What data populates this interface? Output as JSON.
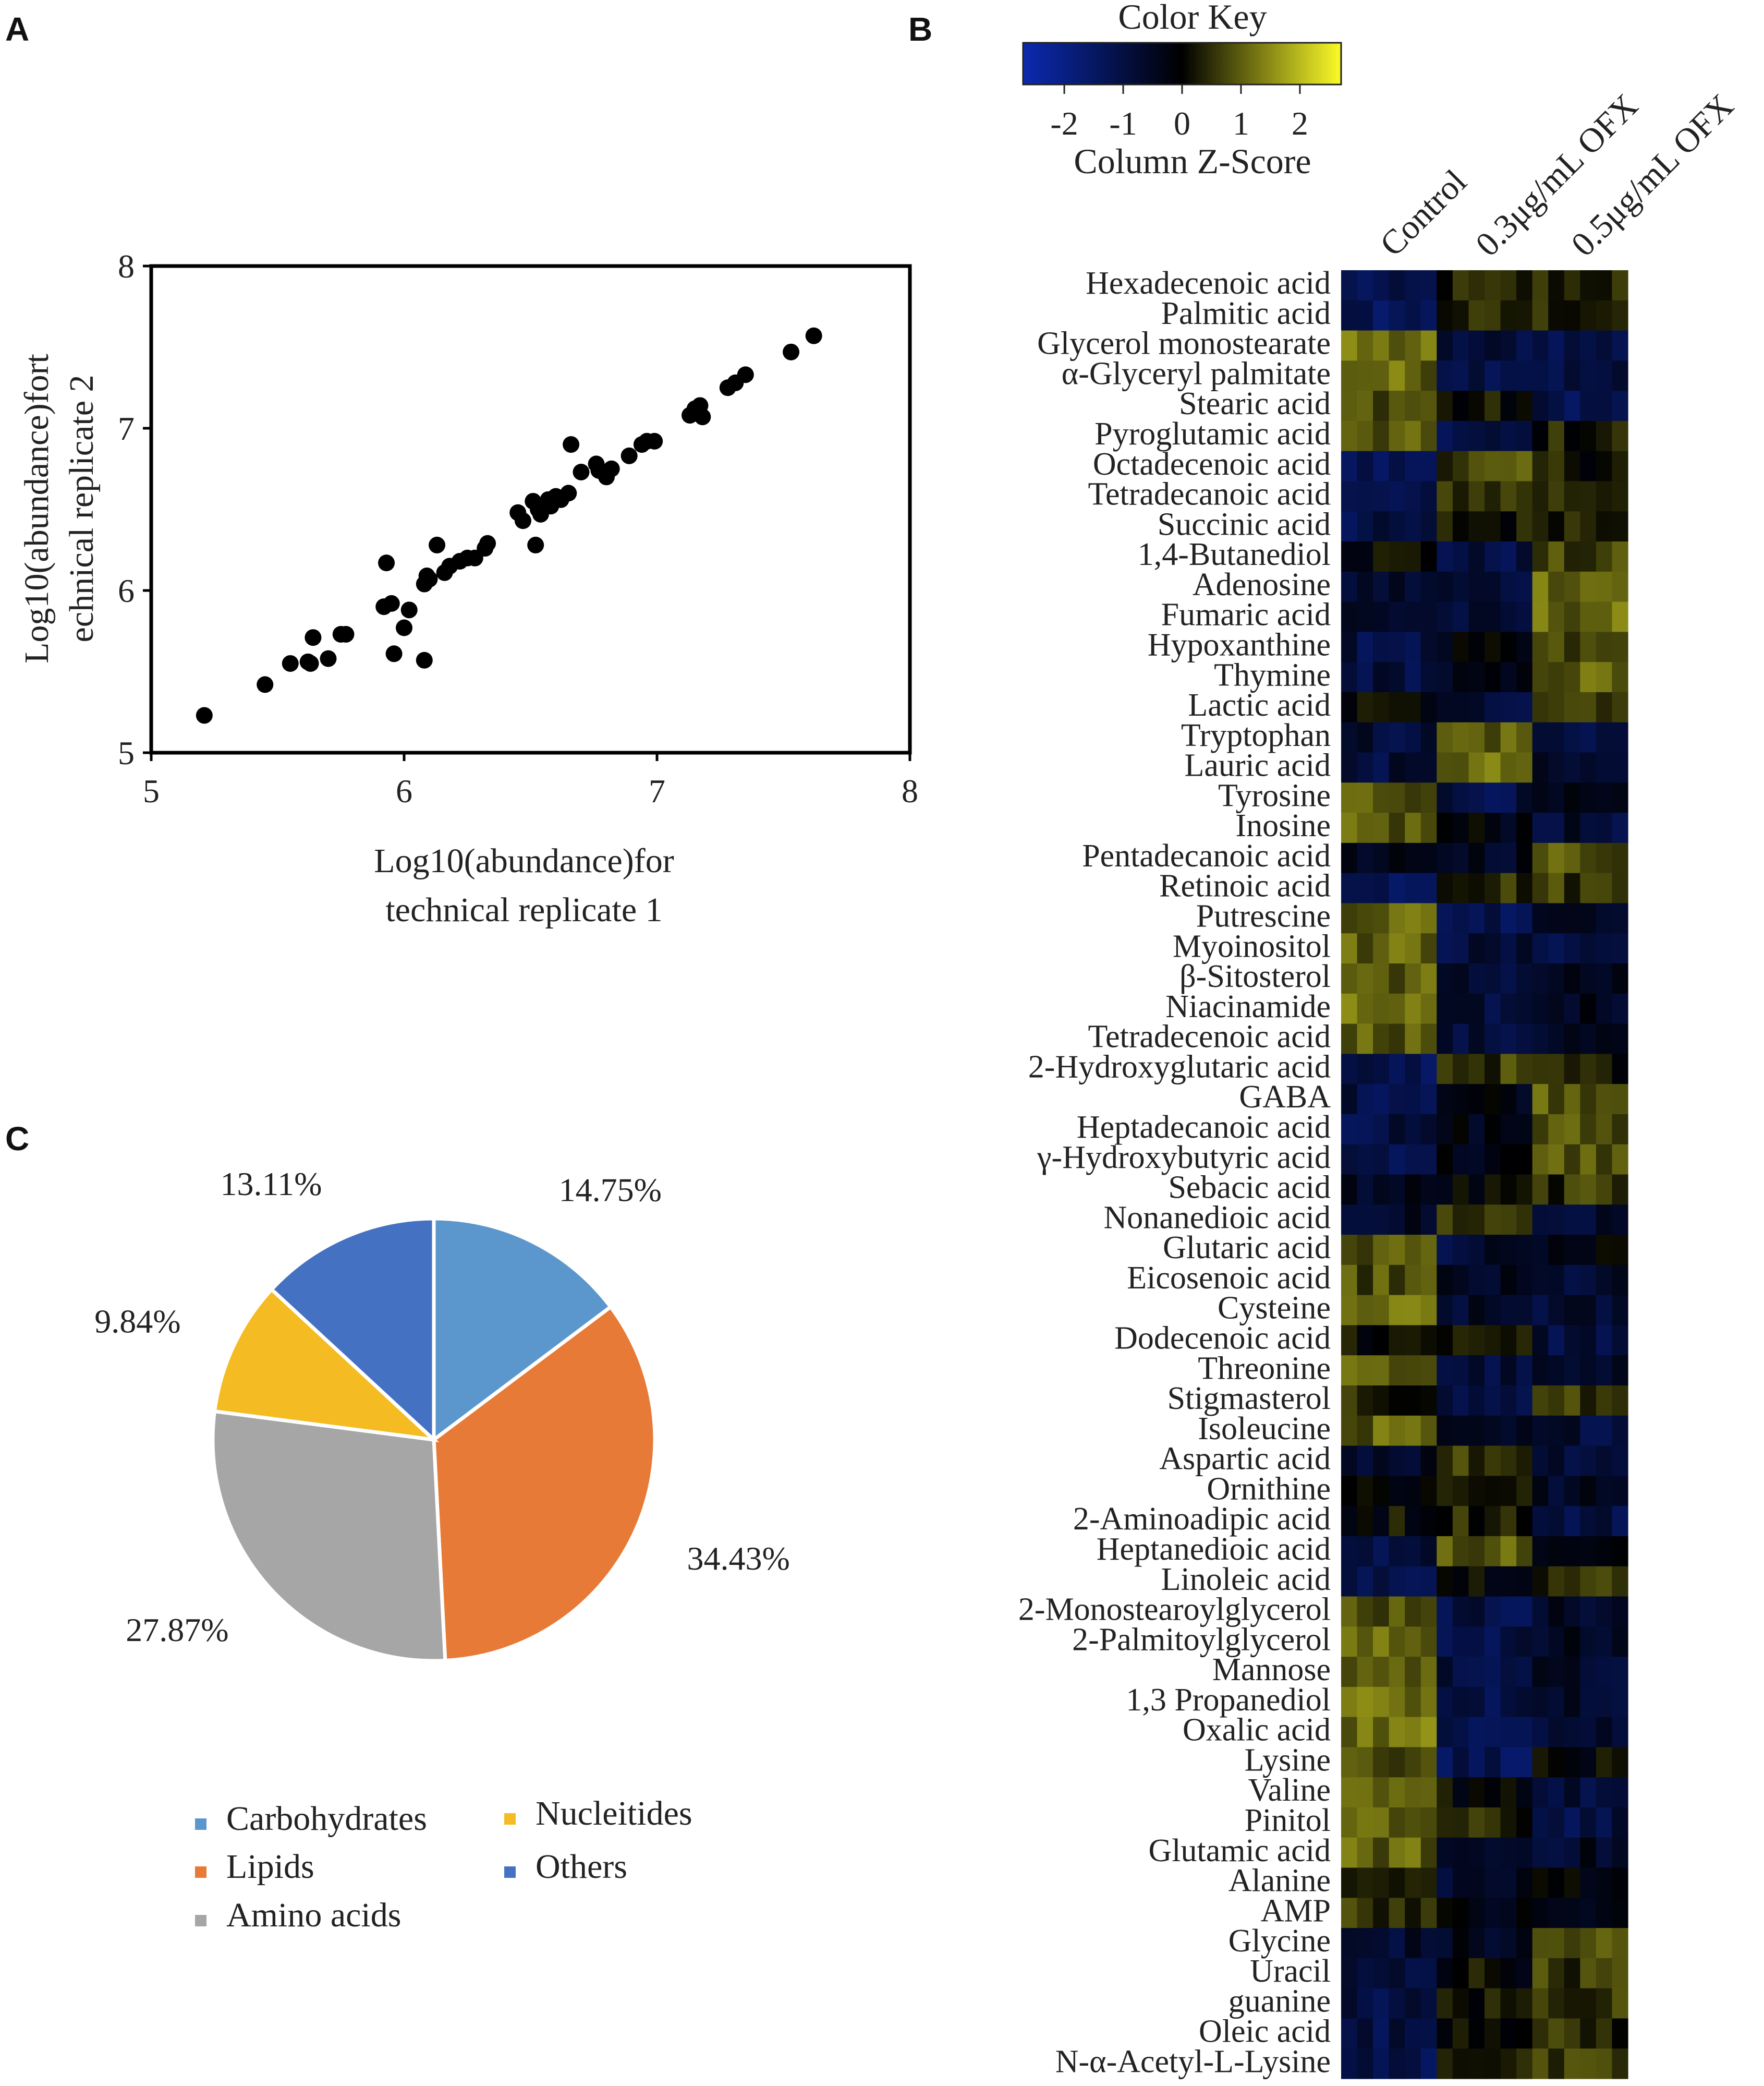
{
  "panels": {
    "a": "A",
    "b": "B",
    "c": "C"
  },
  "chart_data": [
    {
      "type": "scatter",
      "title": "",
      "xlabel_lines": [
        "Log10(abundance)for",
        "technical replicate 1"
      ],
      "ylabel_lines": [
        "Log10(abundance)fort",
        "echnical replicate 2"
      ],
      "xlim": [
        5,
        8
      ],
      "ylim": [
        5,
        8
      ],
      "xticks": [
        5,
        6,
        7,
        8
      ],
      "yticks": [
        5,
        6,
        7,
        8
      ],
      "points": [
        [
          5.21,
          5.23
        ],
        [
          5.45,
          5.42
        ],
        [
          5.55,
          5.55
        ],
        [
          5.62,
          5.56
        ],
        [
          5.63,
          5.55
        ],
        [
          5.64,
          5.71
        ],
        [
          5.7,
          5.58
        ],
        [
          5.75,
          5.73
        ],
        [
          5.77,
          5.73
        ],
        [
          5.92,
          5.9
        ],
        [
          5.93,
          6.17
        ],
        [
          5.95,
          5.92
        ],
        [
          5.96,
          5.61
        ],
        [
          6.0,
          5.77
        ],
        [
          6.02,
          5.88
        ],
        [
          6.08,
          5.57
        ],
        [
          6.08,
          6.04
        ],
        [
          6.09,
          6.09
        ],
        [
          6.1,
          6.07
        ],
        [
          6.13,
          6.28
        ],
        [
          6.16,
          6.11
        ],
        [
          6.18,
          6.15
        ],
        [
          6.22,
          6.18
        ],
        [
          6.25,
          6.2
        ],
        [
          6.28,
          6.2
        ],
        [
          6.32,
          6.26
        ],
        [
          6.33,
          6.29
        ],
        [
          6.45,
          6.48
        ],
        [
          6.47,
          6.43
        ],
        [
          6.51,
          6.55
        ],
        [
          6.52,
          6.28
        ],
        [
          6.53,
          6.5
        ],
        [
          6.54,
          6.47
        ],
        [
          6.57,
          6.56
        ],
        [
          6.58,
          6.52
        ],
        [
          6.6,
          6.58
        ],
        [
          6.62,
          6.56
        ],
        [
          6.65,
          6.6
        ],
        [
          6.66,
          6.9
        ],
        [
          6.7,
          6.73
        ],
        [
          6.76,
          6.78
        ],
        [
          6.77,
          6.74
        ],
        [
          6.8,
          6.7
        ],
        [
          6.82,
          6.75
        ],
        [
          6.89,
          6.83
        ],
        [
          6.94,
          6.9
        ],
        [
          6.96,
          6.92
        ],
        [
          6.99,
          6.92
        ],
        [
          7.13,
          7.08
        ],
        [
          7.15,
          7.12
        ],
        [
          7.17,
          7.14
        ],
        [
          7.18,
          7.07
        ],
        [
          7.28,
          7.25
        ],
        [
          7.31,
          7.28
        ],
        [
          7.35,
          7.33
        ],
        [
          7.53,
          7.47
        ],
        [
          7.62,
          7.57
        ]
      ]
    },
    {
      "type": "heatmap",
      "color_key": {
        "title": "Color Key",
        "axis_label": "Column Z-Score",
        "range": [
          -2.7,
          2.7
        ],
        "ticks": [
          -2,
          -1,
          0,
          1,
          2
        ],
        "tick_labels": [
          "-2",
          "-1",
          "0",
          "1",
          "2"
        ],
        "colors": [
          "#0b2ab0",
          "#000000",
          "#fbfb28"
        ]
      },
      "columns": [
        "Control",
        "0.3μg/mL OFX",
        "0.5μg/mL OFX"
      ],
      "replicates_per_group": 6,
      "rows": [
        {
          "name": "Hexadecenoic acid",
          "z": [
            -1.3,
            0.3,
            0.4
          ]
        },
        {
          "name": "Palmitic acid",
          "z": [
            -1.3,
            0.3,
            0.4
          ]
        },
        {
          "name": "Glycerol monostearate",
          "z": [
            1.1,
            -0.9,
            -1.0
          ]
        },
        {
          "name": "α-Glyceryl palmitate",
          "z": [
            1.1,
            -0.9,
            -1.0
          ]
        },
        {
          "name": "Stearic acid",
          "z": [
            0.9,
            0.1,
            -1.1
          ]
        },
        {
          "name": "Pyroglutamic acid",
          "z": [
            0.8,
            -1.1,
            0.3
          ]
        },
        {
          "name": "Octadecenoic acid",
          "z": [
            -1.3,
            0.7,
            0.3
          ]
        },
        {
          "name": "Tetradecanoic acid",
          "z": [
            -1.3,
            0.6,
            0.5
          ]
        },
        {
          "name": "Succinic acid",
          "z": [
            -1.1,
            0.2,
            0.5
          ]
        },
        {
          "name": "1,4-Butanediol",
          "z": [
            0.1,
            -1.0,
            0.6
          ]
        },
        {
          "name": "Adenosine",
          "z": [
            -0.7,
            -0.8,
            1.2
          ]
        },
        {
          "name": "Fumaric acid",
          "z": [
            -0.6,
            -0.9,
            1.1
          ]
        },
        {
          "name": "Hypoxanthine",
          "z": [
            -1.0,
            -0.3,
            0.6
          ]
        },
        {
          "name": "Thymine",
          "z": [
            -0.9,
            -0.5,
            1.0
          ]
        },
        {
          "name": "Lactic acid",
          "z": [
            0.0,
            -0.8,
            0.8
          ]
        },
        {
          "name": "Tryptophan",
          "z": [
            -0.8,
            1.0,
            -0.9
          ]
        },
        {
          "name": "Lauric acid",
          "z": [
            -0.9,
            1.1,
            -0.8
          ]
        },
        {
          "name": "Tyrosine",
          "z": [
            1.0,
            -1.0,
            -0.6
          ]
        },
        {
          "name": "Inosine",
          "z": [
            0.9,
            -0.2,
            -0.8
          ]
        },
        {
          "name": "Pentadecanoic acid",
          "z": [
            -0.6,
            -0.4,
            0.9
          ]
        },
        {
          "name": "Retinoic acid",
          "z": [
            -1.2,
            0.5,
            0.6
          ]
        },
        {
          "name": "Putrescine",
          "z": [
            1.1,
            -1.1,
            -0.3
          ]
        },
        {
          "name": "Myoinositol",
          "z": [
            1.0,
            -0.9,
            -0.9
          ]
        },
        {
          "name": "β-Sitosterol",
          "z": [
            1.0,
            -0.8,
            -0.5
          ]
        },
        {
          "name": "Niacinamide",
          "z": [
            1.1,
            -0.9,
            -0.4
          ]
        },
        {
          "name": "Tetradecenoic acid",
          "z": [
            1.0,
            -0.9,
            -0.5
          ]
        },
        {
          "name": "2-Hydroxyglutaric acid",
          "z": [
            -1.2,
            0.6,
            0.3
          ]
        },
        {
          "name": "GABA",
          "z": [
            -1.0,
            -0.2,
            1.0
          ]
        },
        {
          "name": "Heptadecanoic acid",
          "z": [
            -1.0,
            -0.3,
            0.8
          ]
        },
        {
          "name": "γ-Hydroxybutyric acid",
          "z": [
            -1.0,
            -0.3,
            0.9
          ]
        },
        {
          "name": "Sebacic acid",
          "z": [
            -0.5,
            -0.1,
            0.5
          ]
        },
        {
          "name": "Nonanedioic acid",
          "z": [
            -0.6,
            0.6,
            -0.8
          ]
        },
        {
          "name": "Glutaric acid",
          "z": [
            0.9,
            -0.8,
            -0.3
          ]
        },
        {
          "name": "Eicosenoic acid",
          "z": [
            0.8,
            -0.6,
            -0.8
          ]
        },
        {
          "name": "Cysteine",
          "z": [
            1.1,
            -0.7,
            -0.8
          ]
        },
        {
          "name": "Dodecenoic acid",
          "z": [
            0.2,
            0.4,
            -0.9
          ]
        },
        {
          "name": "Threonine",
          "z": [
            0.9,
            -0.9,
            -0.8
          ]
        },
        {
          "name": "Stigmasterol",
          "z": [
            0.4,
            -1.0,
            0.5
          ]
        },
        {
          "name": "Isoleucine",
          "z": [
            1.0,
            -0.7,
            -0.8
          ]
        },
        {
          "name": "Aspartic acid",
          "z": [
            -0.5,
            0.6,
            -0.7
          ]
        },
        {
          "name": "Ornithine",
          "z": [
            0.0,
            0.3,
            -0.6
          ]
        },
        {
          "name": "2-Aminoadipic acid",
          "z": [
            0.1,
            0.4,
            -1.0
          ]
        },
        {
          "name": "Heptanedioic acid",
          "z": [
            -0.9,
            1.0,
            -0.4
          ]
        },
        {
          "name": "Linoleic acid",
          "z": [
            -0.9,
            0.1,
            0.5
          ]
        },
        {
          "name": "2-Monostearoylglycerol",
          "z": [
            0.9,
            -1.0,
            -0.6
          ]
        },
        {
          "name": "2-Palmitoylglycerol",
          "z": [
            1.0,
            -1.0,
            -0.6
          ]
        },
        {
          "name": "Mannose",
          "z": [
            1.0,
            -0.9,
            -0.7
          ]
        },
        {
          "name": "1,3 Propanediol",
          "z": [
            1.1,
            -1.0,
            -0.7
          ]
        },
        {
          "name": "Oxalic acid",
          "z": [
            1.2,
            -1.0,
            -0.7
          ]
        },
        {
          "name": "Lysine",
          "z": [
            0.9,
            -1.2,
            -0.1
          ]
        },
        {
          "name": "Valine",
          "z": [
            0.8,
            0.1,
            -0.9
          ]
        },
        {
          "name": "Pinitol",
          "z": [
            0.9,
            0.3,
            -1.0
          ]
        },
        {
          "name": "Glutamic acid",
          "z": [
            1.0,
            -0.6,
            -0.6
          ]
        },
        {
          "name": "Alanine",
          "z": [
            0.2,
            -0.6,
            0.0
          ]
        },
        {
          "name": "AMP",
          "z": [
            0.6,
            -0.3,
            -0.4
          ]
        },
        {
          "name": "Glycine",
          "z": [
            -0.7,
            -0.5,
            0.8
          ]
        },
        {
          "name": "Uracil",
          "z": [
            -0.9,
            0.1,
            0.6
          ]
        },
        {
          "name": "guanine",
          "z": [
            -1.0,
            0.2,
            0.6
          ]
        },
        {
          "name": "Oleic acid",
          "z": [
            -1.0,
            0.3,
            0.4
          ]
        },
        {
          "name": "N-α-Acetyl-L-Lysine",
          "z": [
            -1.1,
            0.4,
            0.5
          ]
        }
      ]
    },
    {
      "type": "pie",
      "slices": [
        {
          "label": "Carbohydrates",
          "value": 14.75,
          "display": "14.75%",
          "color": "#5b97cc"
        },
        {
          "label": "Lipids",
          "value": 34.43,
          "display": "34.43%",
          "color": "#e77a36"
        },
        {
          "label": "Amino acids",
          "value": 27.87,
          "display": "27.87%",
          "color": "#a6a6a6"
        },
        {
          "label": "Nucleitides",
          "value": 9.84,
          "display": "9.84%",
          "color": "#f4bb22"
        },
        {
          "label": "Others",
          "value": 13.11,
          "display": "13.11%",
          "color": "#4471c2"
        }
      ],
      "legend_order": [
        "Carbohydrates",
        "Nucleitides",
        "Lipids",
        "Others",
        "Amino acids"
      ]
    }
  ]
}
